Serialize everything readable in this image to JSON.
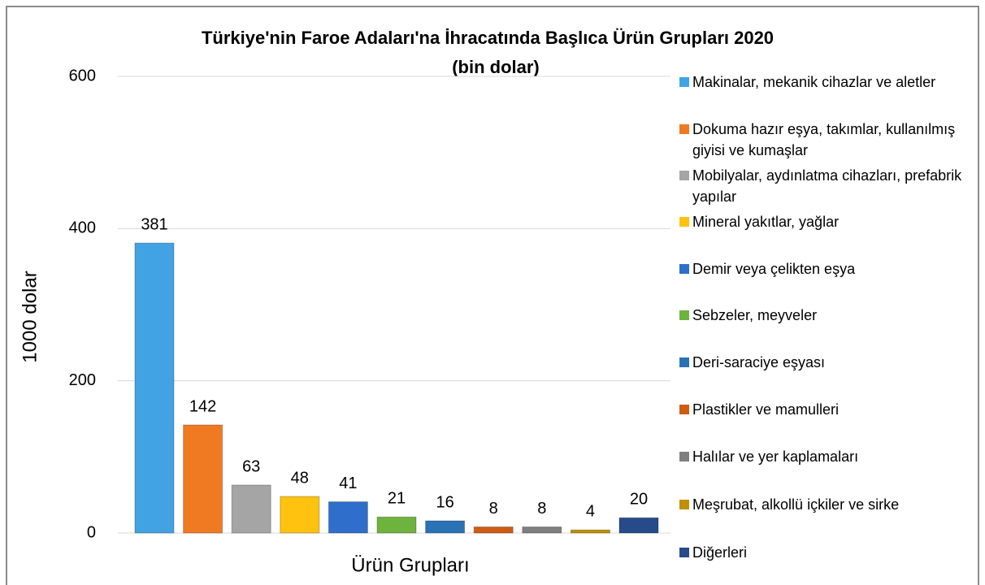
{
  "chart_data": {
    "type": "bar",
    "title": "Türkiye'nin Faroe Adaları'na İhracatında Başlıca Ürün Grupları 2020",
    "subtitle": "(bin dolar)",
    "x_label": "Ürün Grupları",
    "y_label": "1000 dolar",
    "categories": [
      "Makinalar, mekanik cihazlar ve aletler",
      "Dokuma hazır eşya, takımlar, kullanılmış giyisi ve kumaşlar",
      "Mobilyalar, aydınlatma cihazları, prefabrik yapılar",
      "Mineral yakıtlar, yağlar",
      "Demir veya çelikten eşya",
      "Sebzeler, meyveler",
      "Deri-saraciye eşyası",
      "Plastikler ve mamulleri",
      "Halılar ve yer kaplamaları",
      "Meşrubat, alkollü içkiler ve sirke",
      "Diğerleri"
    ],
    "values": [
      381,
      142,
      63,
      48,
      41,
      21,
      16,
      8,
      8,
      4,
      20
    ],
    "colors": [
      "#41a3e3",
      "#f07a22",
      "#a5a5a5",
      "#ffc20e",
      "#2f6fcb",
      "#6fb33f",
      "#2a72b5",
      "#d05b12",
      "#7f7f7f",
      "#bf9000",
      "#264a8a"
    ],
    "ylim": [
      0,
      600
    ],
    "yticks": [
      0,
      200,
      400,
      600
    ],
    "grid": true,
    "legend": "right"
  }
}
